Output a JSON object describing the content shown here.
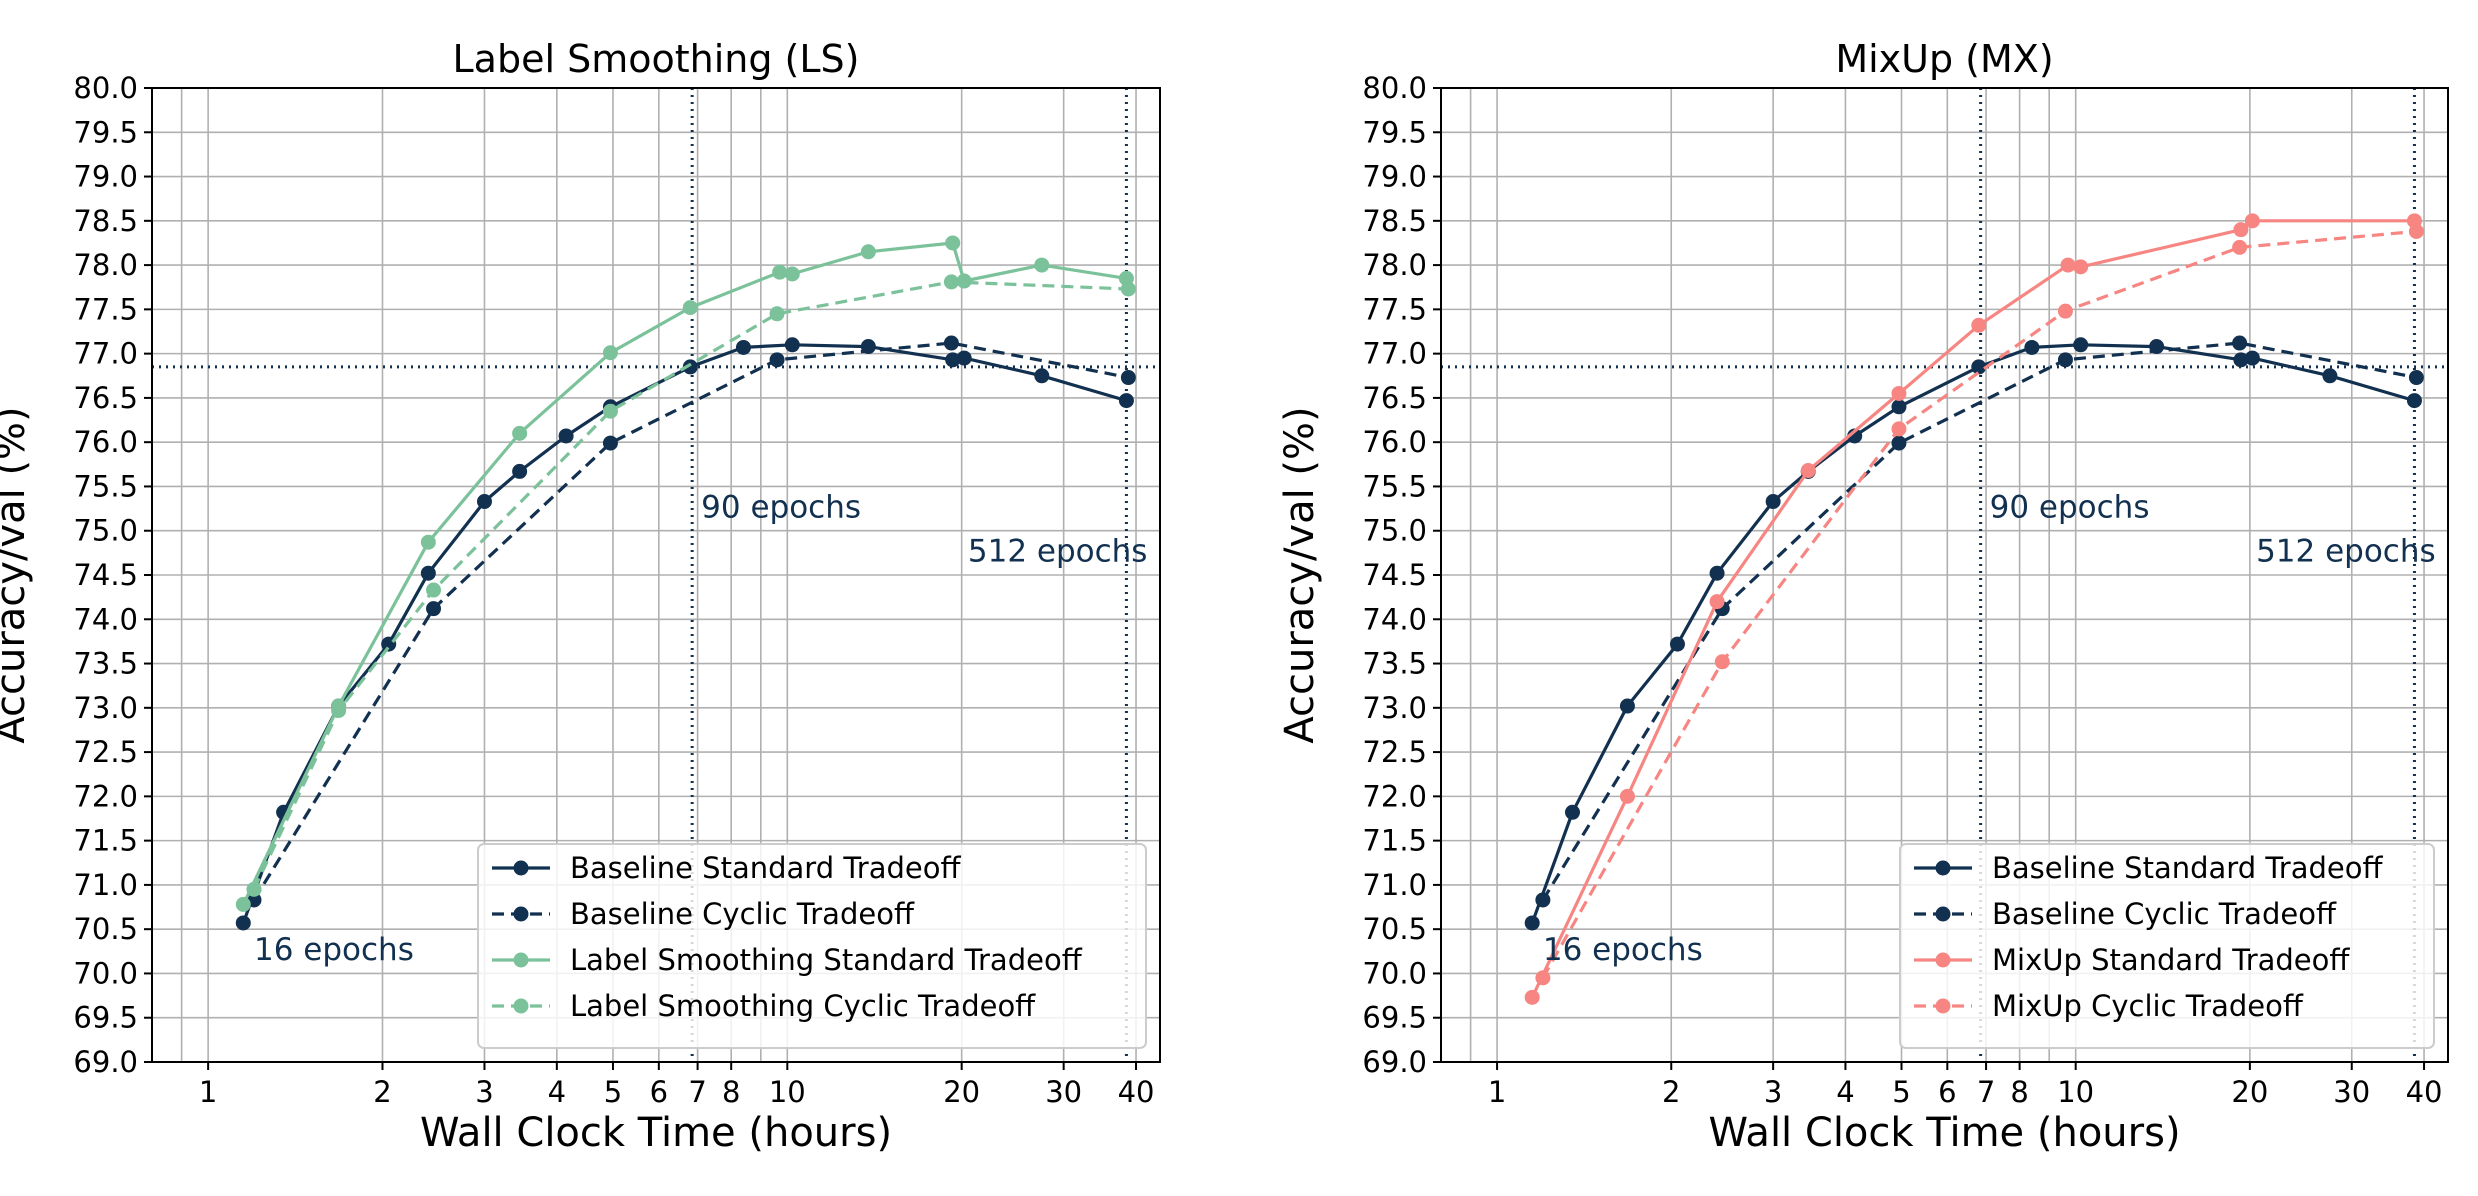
{
  "colors": {
    "baseline": "#12304f",
    "label_smoothing": "#7bc29a",
    "mixup": "#f78683",
    "grid": "#b0b0b0",
    "axis": "#000000"
  },
  "chart_data": [
    {
      "type": "line",
      "title": "Label Smoothing (LS)",
      "xlabel": "Wall Clock Time (hours)",
      "ylabel": "Accuracy/val (%)",
      "xscale": "log",
      "xlim": [
        0.8,
        44
      ],
      "ylim": [
        69.0,
        80.0
      ],
      "xticks": [
        1,
        2,
        3,
        4,
        5,
        6,
        7,
        8,
        10,
        20,
        30,
        40
      ],
      "xtick_labels": [
        "1",
        "2",
        "3",
        "4",
        "5",
        "6",
        "7",
        "8",
        "10",
        "20",
        "30",
        "40"
      ],
      "yticks": [
        69.0,
        69.5,
        70.0,
        70.5,
        71.0,
        71.5,
        72.0,
        72.5,
        73.0,
        73.5,
        74.0,
        74.5,
        75.0,
        75.5,
        76.0,
        76.5,
        77.0,
        77.5,
        78.0,
        78.5,
        79.0,
        79.5,
        80.0
      ],
      "ytick_labels": [
        "69.0",
        "69.5",
        "70.0",
        "70.5",
        "71.0",
        "71.5",
        "72.0",
        "72.5",
        "73.0",
        "73.5",
        "74.0",
        "74.5",
        "75.0",
        "75.5",
        "76.0",
        "76.5",
        "77.0",
        "77.5",
        "78.0",
        "78.5",
        "79.0",
        "79.5",
        "80.0"
      ],
      "grid": true,
      "legend_position": "lower-right",
      "reference_lines": {
        "horizontal_y": 76.85,
        "vertical_x": [
          6.85,
          38.5
        ]
      },
      "annotations": [
        {
          "text": "16 epochs",
          "x": 1.2,
          "y": 70.15
        },
        {
          "text": "90 epochs",
          "x": 7.1,
          "y": 75.15
        },
        {
          "text": "512 epochs",
          "x": 20.5,
          "y": 74.65
        }
      ],
      "series": [
        {
          "name": "Baseline Standard Tradeoff",
          "color_key": "baseline",
          "dash": false,
          "x": [
            1.15,
            1.35,
            1.68,
            2.05,
            2.4,
            3.0,
            3.45,
            4.15,
            4.95,
            6.8,
            8.4,
            10.2,
            13.8,
            19.3,
            20.2,
            27.5,
            38.5
          ],
          "y": [
            70.57,
            71.82,
            73.02,
            73.72,
            74.52,
            75.33,
            75.67,
            76.07,
            76.4,
            76.85,
            77.07,
            77.1,
            77.08,
            76.93,
            76.95,
            76.75,
            76.47
          ]
        },
        {
          "name": "Baseline Cyclic Tradeoff",
          "color_key": "baseline",
          "dash": true,
          "x": [
            1.2,
            2.45,
            4.95,
            9.6,
            19.2,
            38.8
          ],
          "y": [
            70.83,
            74.12,
            75.99,
            76.93,
            77.12,
            76.73
          ]
        },
        {
          "name": "Label Smoothing Standard Tradeoff",
          "color_key": "label_smoothing",
          "dash": false,
          "x": [
            1.15,
            1.68,
            2.4,
            3.45,
            4.95,
            6.8,
            9.7,
            10.2,
            13.8,
            19.3,
            20.2,
            27.5,
            38.5
          ],
          "y": [
            70.78,
            73.02,
            74.87,
            76.1,
            77.01,
            77.52,
            77.92,
            77.9,
            78.15,
            78.25,
            77.82,
            78.0,
            77.85
          ]
        },
        {
          "name": "Label Smoothing Cyclic Tradeoff",
          "color_key": "label_smoothing",
          "dash": true,
          "x": [
            1.2,
            1.68,
            2.45,
            4.95,
            9.6,
            19.2,
            38.8
          ],
          "y": [
            70.95,
            72.97,
            74.33,
            76.35,
            77.45,
            77.81,
            77.73
          ]
        }
      ]
    },
    {
      "type": "line",
      "title": "MixUp (MX)",
      "xlabel": "Wall Clock Time (hours)",
      "ylabel": "Accuracy/val (%)",
      "xscale": "log",
      "xlim": [
        0.8,
        44
      ],
      "ylim": [
        69.0,
        80.0
      ],
      "xticks": [
        1,
        2,
        3,
        4,
        5,
        6,
        7,
        8,
        10,
        20,
        30,
        40
      ],
      "xtick_labels": [
        "1",
        "2",
        "3",
        "4",
        "5",
        "6",
        "7",
        "8",
        "10",
        "20",
        "30",
        "40"
      ],
      "yticks": [
        69.0,
        69.5,
        70.0,
        70.5,
        71.0,
        71.5,
        72.0,
        72.5,
        73.0,
        73.5,
        74.0,
        74.5,
        75.0,
        75.5,
        76.0,
        76.5,
        77.0,
        77.5,
        78.0,
        78.5,
        79.0,
        79.5,
        80.0
      ],
      "ytick_labels": [
        "69.0",
        "69.5",
        "70.0",
        "70.5",
        "71.0",
        "71.5",
        "72.0",
        "72.5",
        "73.0",
        "73.5",
        "74.0",
        "74.5",
        "75.0",
        "75.5",
        "76.0",
        "76.5",
        "77.0",
        "77.5",
        "78.0",
        "78.5",
        "79.0",
        "79.5",
        "80.0"
      ],
      "grid": true,
      "legend_position": "lower-right",
      "reference_lines": {
        "horizontal_y": 76.85,
        "vertical_x": [
          6.85,
          38.5
        ]
      },
      "annotations": [
        {
          "text": "16 epochs",
          "x": 1.2,
          "y": 70.15
        },
        {
          "text": "90 epochs",
          "x": 7.1,
          "y": 75.15
        },
        {
          "text": "512 epochs",
          "x": 20.5,
          "y": 74.65
        }
      ],
      "series": [
        {
          "name": "Baseline Standard Tradeoff",
          "color_key": "baseline",
          "dash": false,
          "x": [
            1.15,
            1.35,
            1.68,
            2.05,
            2.4,
            3.0,
            3.45,
            4.15,
            4.95,
            6.8,
            8.4,
            10.2,
            13.8,
            19.3,
            20.2,
            27.5,
            38.5
          ],
          "y": [
            70.57,
            71.82,
            73.02,
            73.72,
            74.52,
            75.33,
            75.67,
            76.07,
            76.4,
            76.85,
            77.07,
            77.1,
            77.08,
            76.93,
            76.95,
            76.75,
            76.47
          ]
        },
        {
          "name": "Baseline Cyclic Tradeoff",
          "color_key": "baseline",
          "dash": true,
          "x": [
            1.2,
            2.45,
            4.95,
            9.6,
            19.2,
            38.8
          ],
          "y": [
            70.83,
            74.12,
            75.99,
            76.93,
            77.12,
            76.73
          ]
        },
        {
          "name": "MixUp Standard Tradeoff",
          "color_key": "mixup",
          "dash": false,
          "x": [
            1.15,
            1.68,
            2.4,
            3.45,
            4.95,
            6.8,
            9.7,
            10.2,
            19.3,
            20.2,
            38.5
          ],
          "y": [
            69.73,
            72.0,
            74.2,
            75.68,
            76.55,
            77.32,
            78.0,
            77.98,
            78.4,
            78.5,
            78.5
          ]
        },
        {
          "name": "MixUp Cyclic Tradeoff",
          "color_key": "mixup",
          "dash": true,
          "x": [
            1.2,
            2.45,
            4.95,
            9.6,
            19.2,
            38.8
          ],
          "y": [
            69.95,
            73.52,
            76.15,
            77.48,
            78.2,
            78.38
          ]
        }
      ]
    }
  ]
}
